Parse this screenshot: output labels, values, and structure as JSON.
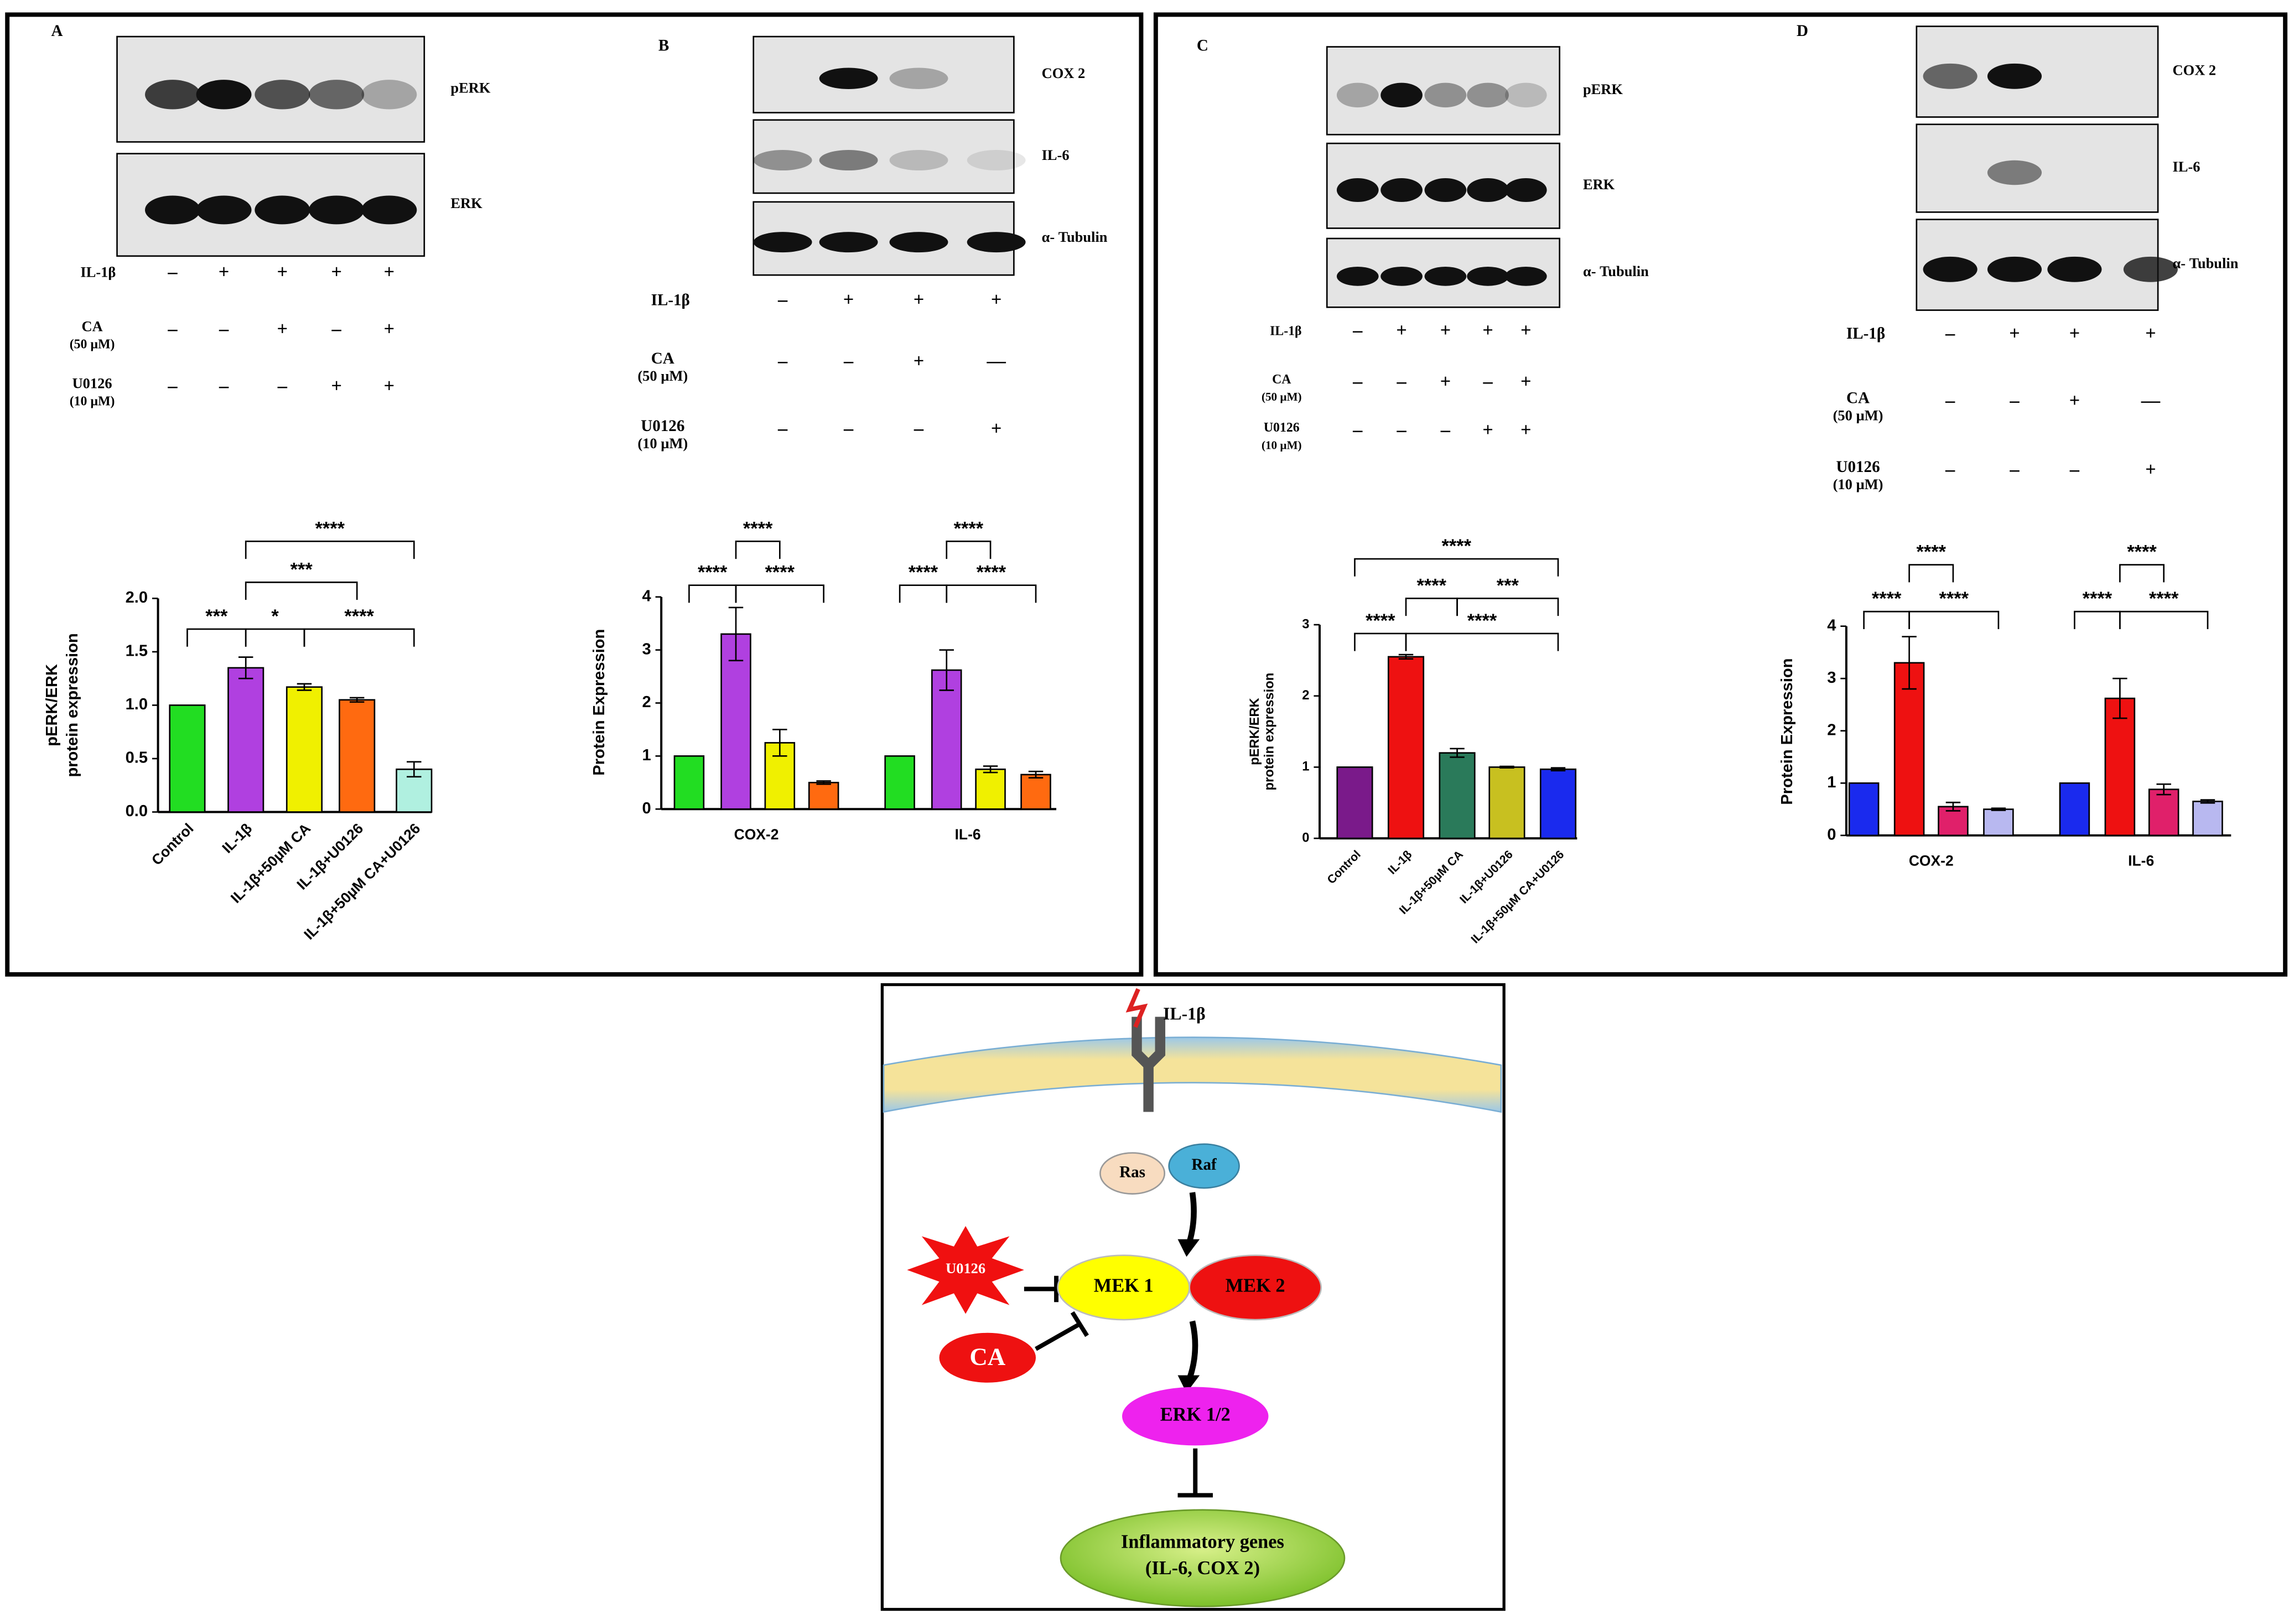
{
  "panels": [
    {
      "letter": "A",
      "blots": [
        "pERK",
        "ERK"
      ],
      "treatments": [
        {
          "label": [
            "IL-1β"
          ],
          "signs": [
            "–",
            "+",
            "+",
            "+",
            "+"
          ]
        },
        {
          "label": [
            "CA",
            "(50 µM)"
          ],
          "signs": [
            "–",
            "–",
            "+",
            "–",
            "+"
          ]
        },
        {
          "label": [
            "U0126",
            "(10 µM)"
          ],
          "signs": [
            "–",
            "–",
            "–",
            "+",
            "+"
          ]
        }
      ]
    },
    {
      "letter": "B",
      "blots": [
        "COX 2",
        "IL-6",
        "α- Tubulin"
      ],
      "treatments": [
        {
          "label": [
            "IL-1β"
          ],
          "signs": [
            "–",
            "+",
            "+",
            "+"
          ]
        },
        {
          "label": [
            "CA",
            "(50 µM)"
          ],
          "signs": [
            "–",
            "–",
            "+",
            "—"
          ]
        },
        {
          "label": [
            "U0126",
            "(10 µM)"
          ],
          "signs": [
            "–",
            "–",
            "–",
            "+"
          ]
        }
      ]
    },
    {
      "letter": "C",
      "blots": [
        "pERK",
        "ERK",
        "α- Tubulin"
      ],
      "treatments": [
        {
          "label": [
            "IL-1β"
          ],
          "signs": [
            "–",
            "+",
            "+",
            "+",
            "+"
          ]
        },
        {
          "label": [
            "CA",
            "(50 µM)"
          ],
          "signs": [
            "–",
            "–",
            "+",
            "–",
            "+"
          ]
        },
        {
          "label": [
            "U0126",
            "(10 µM)"
          ],
          "signs": [
            "–",
            "–",
            "–",
            "+",
            "+"
          ]
        }
      ]
    },
    {
      "letter": "D",
      "blots": [
        "COX 2",
        "IL-6",
        "α- Tubulin"
      ],
      "treatments": [
        {
          "label": [
            "IL-1β"
          ],
          "signs": [
            "–",
            "+",
            "+",
            "+"
          ]
        },
        {
          "label": [
            "CA",
            "(50 µM)"
          ],
          "signs": [
            "–",
            "–",
            "+",
            "—"
          ]
        },
        {
          "label": [
            "U0126",
            "(10 µM)"
          ],
          "signs": [
            "–",
            "–",
            "–",
            "+"
          ]
        }
      ]
    }
  ],
  "chart_data": [
    {
      "type": "bar",
      "ylabel": [
        "pERK/ERK",
        "protein expression"
      ],
      "categories": [
        "Control",
        "IL-1β",
        "IL-1β+50µM CA",
        "IL-1β+U0126",
        "IL-1β+50µM CA+U0126"
      ],
      "values": [
        1.0,
        1.35,
        1.17,
        1.05,
        0.4
      ],
      "errors": [
        0,
        0.1,
        0.03,
        0.02,
        0.07
      ],
      "colors": [
        "#22dd22",
        "#b040e0",
        "#f0f000",
        "#ff6a10",
        "#b0f0e0"
      ],
      "ylim": [
        0,
        2
      ],
      "yticks": [
        {
          "value": 0,
          "label": "0.0"
        },
        0.5,
        {
          "value": 1,
          "label": "1.0"
        },
        1.5,
        {
          "value": 2,
          "label": "2.0"
        }
      ],
      "annotations": [
        "***",
        "*",
        "****",
        "***",
        "****"
      ]
    },
    {
      "type": "grouped-bar",
      "ylabel": [
        "Protein Expression"
      ],
      "categories": [
        "COX-2",
        "IL-6"
      ],
      "series": [
        {
          "color": "#22dd22",
          "values": [
            1,
            1
          ],
          "errors": [
            0,
            0
          ]
        },
        {
          "color": "#b040e0",
          "values": [
            3.3,
            2.62
          ],
          "errors": [
            0.5,
            0.38
          ]
        },
        {
          "color": "#f0f000",
          "values": [
            1.25,
            0.75
          ],
          "errors": [
            0.25,
            0.06
          ]
        },
        {
          "color": "#ff6a10",
          "values": [
            0.5,
            0.65
          ],
          "errors": [
            0.03,
            0.06
          ]
        }
      ],
      "ylim": [
        0,
        4
      ],
      "yticks": [
        0,
        1,
        2,
        3,
        4
      ],
      "annotations": [
        "****",
        "****",
        "****",
        "****",
        "****",
        "****"
      ]
    },
    {
      "type": "bar",
      "ylabel": [
        "pERK/ERK",
        "protein expression"
      ],
      "categories": [
        "Control",
        "IL-1β",
        "IL-1β+50µM CA",
        "IL-1β+U0126",
        "IL-1β+50µM CA+U0126"
      ],
      "values": [
        1.0,
        2.55,
        1.2,
        1.0,
        0.97
      ],
      "errors": [
        0,
        0.03,
        0.06,
        0.01,
        0.02
      ],
      "colors": [
        "#7a1a8a",
        "#ee1111",
        "#2a7a5a",
        "#c8c020",
        "#1a2aee"
      ],
      "ylim": [
        0,
        3
      ],
      "yticks": [
        0,
        1,
        2,
        3
      ],
      "annotations": [
        "****",
        "****",
        "***",
        "****",
        "****"
      ]
    },
    {
      "type": "grouped-bar",
      "ylabel": [
        "Protein Expression"
      ],
      "categories": [
        "COX-2",
        "IL-6"
      ],
      "series": [
        {
          "color": "#1a2aee",
          "values": [
            1,
            1
          ],
          "errors": [
            0,
            0
          ]
        },
        {
          "color": "#ee1111",
          "values": [
            3.3,
            2.62
          ],
          "errors": [
            0.5,
            0.38
          ]
        },
        {
          "color": "#e0206a",
          "values": [
            0.55,
            0.88
          ],
          "errors": [
            0.08,
            0.1
          ]
        },
        {
          "color": "#b8b8f0",
          "values": [
            0.5,
            0.65
          ],
          "errors": [
            0.02,
            0.03
          ]
        }
      ],
      "ylim": [
        0,
        4
      ],
      "yticks": [
        0,
        1,
        2,
        3,
        4
      ],
      "annotations": [
        "****",
        "****",
        "****",
        "****",
        "****",
        "****"
      ]
    }
  ],
  "diagram": {
    "stimulus": "IL-1β",
    "ras": "Ras",
    "raf": "Raf",
    "inhibitor": "U0126",
    "mek1": "MEK 1",
    "mek2": "MEK 2",
    "ca": "CA",
    "erk": "ERK 1/2",
    "genes": [
      "Inflammatory genes",
      "(IL-6, COX 2)"
    ]
  }
}
